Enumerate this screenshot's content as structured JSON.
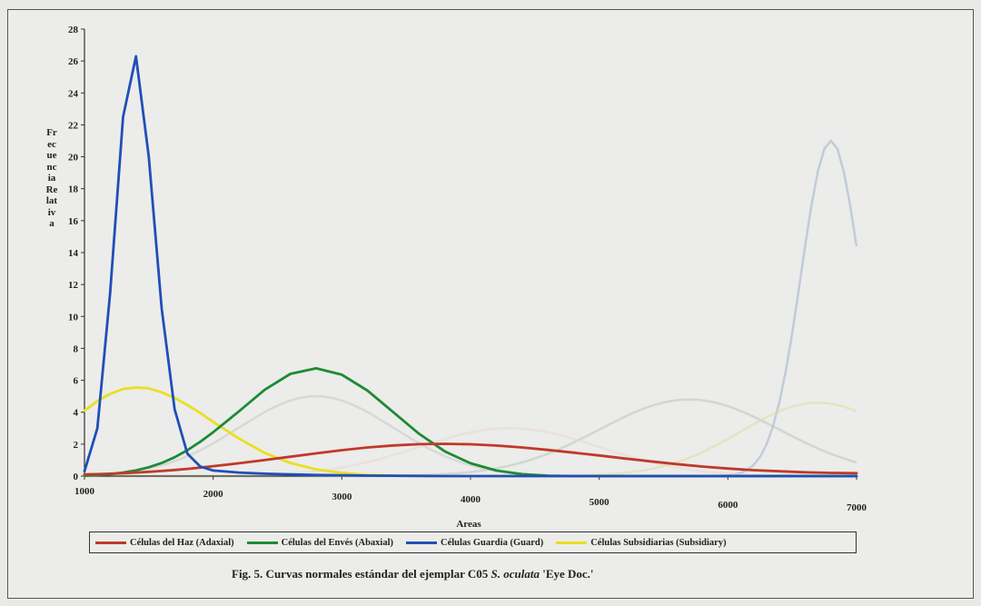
{
  "figure": {
    "caption_prefix": "Fig. 5. Curvas normales estándar del ejemplar C05 ",
    "caption_species": "S. oculata",
    "caption_suffix": " 'Eye Doc.'"
  },
  "chart_data": {
    "type": "line",
    "xlabel": "Areas",
    "ylabel": "Frecuencia Relativa",
    "xlim": [
      1000,
      7000
    ],
    "ylim": [
      0,
      28
    ],
    "x_ticks": [
      "1000",
      "2000",
      "3000",
      "4000",
      "5000",
      "6000",
      "7000"
    ],
    "y_ticks": [
      "0",
      "2",
      "4",
      "6",
      "8",
      "10",
      "12",
      "14",
      "16",
      "18",
      "20",
      "22",
      "24",
      "26",
      "28"
    ],
    "grid": false,
    "legend_position": "bottom",
    "x": [
      1000,
      1100,
      1200,
      1300,
      1400,
      1500,
      1600,
      1700,
      1800,
      1900,
      2000,
      2200,
      2400,
      2600,
      2800,
      3000,
      3200,
      3400,
      3600,
      3800,
      4000,
      4200,
      4400,
      4600,
      4800,
      5000,
      5200,
      5400,
      5600,
      5800,
      6000,
      6200,
      6400,
      6600,
      6800,
      7000
    ],
    "series": [
      {
        "name": "Células del Haz (Adaxial)",
        "color": "#c0392b",
        "values": [
          0.1,
          0.12,
          0.15,
          0.18,
          0.22,
          0.27,
          0.32,
          0.38,
          0.45,
          0.53,
          0.62,
          0.8,
          1.0,
          1.21,
          1.42,
          1.62,
          1.79,
          1.92,
          2.0,
          2.02,
          1.99,
          1.91,
          1.79,
          1.64,
          1.47,
          1.29,
          1.1,
          0.92,
          0.75,
          0.6,
          0.47,
          0.37,
          0.3,
          0.24,
          0.2,
          0.18
        ]
      },
      {
        "name": "Células del Envés (Abaxial)",
        "color": "#1e8a35",
        "values": [
          0.02,
          0.06,
          0.12,
          0.22,
          0.36,
          0.55,
          0.82,
          1.18,
          1.62,
          2.15,
          2.75,
          4.05,
          5.4,
          6.4,
          6.75,
          6.35,
          5.35,
          4.0,
          2.65,
          1.55,
          0.8,
          0.35,
          0.12,
          0.02,
          0.0,
          0.0,
          0.0,
          0.0,
          0.0,
          0.0,
          0.0,
          0.0,
          0.0,
          0.0,
          0.0,
          0.0
        ]
      },
      {
        "name": "Células Guardia (Guard)",
        "color": "#1f4fb8",
        "values": [
          0.3,
          3.0,
          11.5,
          22.5,
          26.3,
          20.0,
          10.5,
          4.2,
          1.4,
          0.6,
          0.35,
          0.22,
          0.15,
          0.1,
          0.07,
          0.05,
          0.03,
          0.02,
          0.01,
          0.0,
          0.0,
          0.0,
          0.0,
          0.0,
          0.0,
          0.0,
          0.0,
          0.0,
          0.0,
          0.0,
          0.0,
          0.0,
          0.0,
          0.0,
          0.0,
          0.0
        ]
      },
      {
        "name": "Células Subsidiarias (Subsidiary)",
        "color": "#e8e020",
        "values": [
          4.1,
          4.7,
          5.15,
          5.45,
          5.55,
          5.5,
          5.25,
          4.9,
          4.45,
          3.95,
          3.4,
          2.35,
          1.45,
          0.82,
          0.42,
          0.2,
          0.08,
          0.02,
          0.0,
          0.0,
          0.0,
          0.0,
          0.0,
          0.0,
          0.0,
          0.0,
          0.0,
          0.0,
          0.0,
          0.0,
          0.0,
          0.0,
          0.0,
          0.0,
          0.0,
          0.0
        ]
      }
    ]
  }
}
